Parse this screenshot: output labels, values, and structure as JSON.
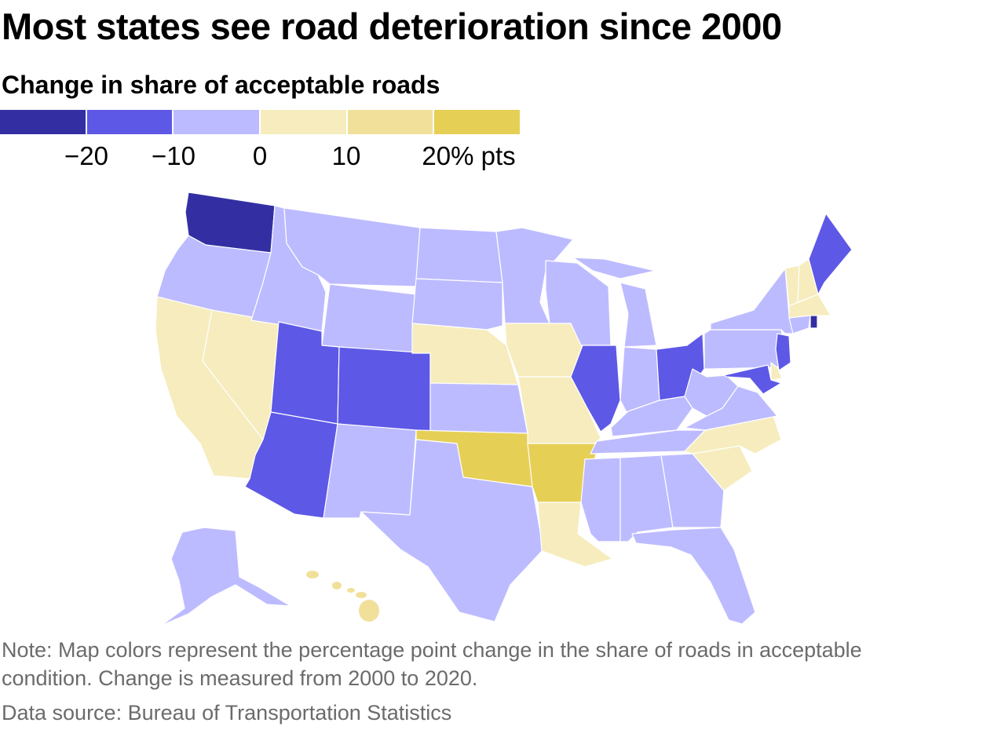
{
  "title": "Most states see road deterioration since 2000",
  "subtitle": "Change in share of acceptable roads",
  "legend": {
    "bins": [
      {
        "range": "below -20",
        "color": "#332fa3"
      },
      {
        "range": "-20 to -10",
        "color": "#5d58e6"
      },
      {
        "range": "-10 to 0",
        "color": "#bdbbff"
      },
      {
        "range": "0 to 10",
        "color": "#f6ecbd"
      },
      {
        "range": "10 to 20",
        "color": "#f1e09a"
      },
      {
        "range": "above 20",
        "color": "#e6cf55"
      }
    ],
    "ticks": [
      "−20",
      "−10",
      "0",
      "10",
      "20% pts"
    ]
  },
  "states": {
    "WA": 0,
    "RI": 0,
    "UT": 1,
    "CO": 1,
    "AZ": 1,
    "IL": 1,
    "OH": 1,
    "ME": 1,
    "NJ": 1,
    "MD": 1,
    "OR": 2,
    "ID": 2,
    "MT": 2,
    "WY": 2,
    "NM": 2,
    "ND": 2,
    "SD": 2,
    "KS": 2,
    "TX": 2,
    "MN": 2,
    "WI": 2,
    "MI": 2,
    "IN": 2,
    "KY": 2,
    "TN": 2,
    "MS": 2,
    "AL": 2,
    "GA": 2,
    "FL": 2,
    "WV": 2,
    "VA": 2,
    "PA": 2,
    "NY": 2,
    "CT": 2,
    "AK": 2,
    "CA": 3,
    "NV": 3,
    "NE": 3,
    "IA": 3,
    "MO": 3,
    "LA": 3,
    "NC": 3,
    "SC": 3,
    "VT": 3,
    "NH": 3,
    "MA": 3,
    "DE": 3,
    "HI": 4,
    "OK": 5,
    "AR": 5
  },
  "note": "Note: Map colors represent the percentage point change in the share of roads in acceptable condition. Change is measured from 2000 to 2020.",
  "source": "Data source: Bureau of Transportation Statistics"
}
